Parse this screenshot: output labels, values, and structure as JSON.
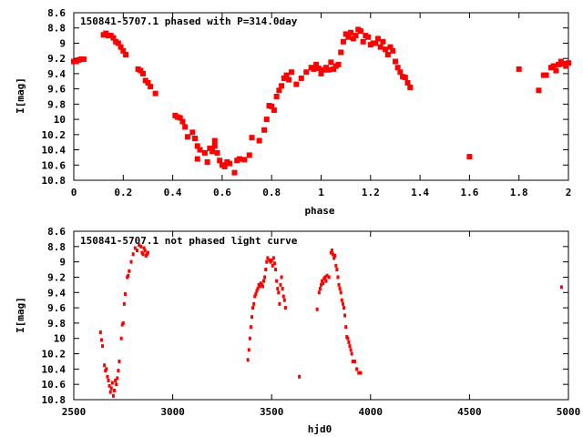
{
  "chart_data": [
    {
      "type": "scatter",
      "title": "150841-5707.1 phased with P=314.0day",
      "xlabel": "phase",
      "ylabel": "I[mag]",
      "xlim": [
        0,
        2
      ],
      "ylim": [
        10.8,
        8.6
      ],
      "y_inverted": true,
      "grid": false,
      "marker_color": "#ff0000",
      "marker": "filled-square",
      "x_ticks": [
        0,
        0.2,
        0.4,
        0.6,
        0.8,
        1,
        1.2,
        1.4,
        1.6,
        1.8,
        2
      ],
      "x_tick_labels": [
        "0",
        "0.2",
        "0.4",
        "0.6",
        "0.8",
        "1",
        "1.2",
        "1.4",
        "1.6",
        "1.8",
        "2"
      ],
      "y_ticks": [
        8.6,
        8.8,
        9,
        9.2,
        9.4,
        9.6,
        9.8,
        10,
        10.2,
        10.4,
        10.6,
        10.8
      ],
      "y_tick_labels": [
        "8.6",
        "8.8",
        "9",
        "9.2",
        "9.4",
        "9.6",
        "9.8",
        "10",
        "10.2",
        "10.4",
        "10.6",
        "10.8"
      ],
      "series": [
        {
          "x": [
            0.0,
            0.01,
            0.02,
            0.03,
            0.04,
            0.12,
            0.13,
            0.14,
            0.15,
            0.16,
            0.17,
            0.18,
            0.19,
            0.2,
            0.21,
            0.26,
            0.27,
            0.28,
            0.29,
            0.3,
            0.31,
            0.33,
            0.41,
            0.42,
            0.43,
            0.44,
            0.45,
            0.46,
            0.48,
            0.49,
            0.5,
            0.5,
            0.51,
            0.53,
            0.54,
            0.55,
            0.56,
            0.57,
            0.57,
            0.58,
            0.59,
            0.6,
            0.61,
            0.62,
            0.63,
            0.65,
            0.66,
            0.67,
            0.69,
            0.71,
            0.72,
            0.75,
            0.77,
            0.78,
            0.79,
            0.8,
            0.81,
            0.82,
            0.83,
            0.84,
            0.85,
            0.86,
            0.87,
            0.88,
            0.9,
            0.92,
            0.94,
            0.96,
            0.97,
            0.98,
            0.99,
            1.0,
            1.01,
            1.02,
            1.03,
            1.04,
            1.05,
            1.06,
            1.07,
            1.08,
            1.09,
            1.1,
            1.11,
            1.12,
            1.13,
            1.14,
            1.15,
            1.16,
            1.17,
            1.18,
            1.19,
            1.2,
            1.21,
            1.22,
            1.23,
            1.24,
            1.25,
            1.26,
            1.27,
            1.28,
            1.29,
            1.3,
            1.31,
            1.32,
            1.33,
            1.34,
            1.35,
            1.36,
            1.6,
            1.8,
            1.88,
            1.9,
            1.91,
            1.93,
            1.94,
            1.95,
            1.96,
            1.97,
            1.98,
            1.99,
            2.0
          ],
          "y": [
            9.24,
            9.24,
            9.22,
            9.21,
            9.21,
            8.89,
            8.87,
            8.9,
            8.9,
            8.93,
            8.98,
            9.0,
            9.05,
            9.1,
            9.15,
            9.34,
            9.36,
            9.4,
            9.49,
            9.52,
            9.57,
            9.66,
            9.95,
            9.97,
            9.98,
            10.03,
            10.1,
            10.23,
            10.17,
            10.25,
            10.35,
            10.52,
            10.4,
            10.44,
            10.56,
            10.38,
            10.42,
            10.35,
            10.28,
            10.44,
            10.54,
            10.6,
            10.62,
            10.56,
            10.58,
            10.7,
            10.54,
            10.52,
            10.53,
            10.47,
            10.24,
            10.28,
            10.14,
            10.0,
            9.82,
            9.83,
            9.88,
            9.7,
            9.62,
            9.56,
            9.46,
            9.42,
            9.48,
            9.38,
            9.54,
            9.46,
            9.38,
            9.32,
            9.34,
            9.28,
            9.33,
            9.4,
            9.35,
            9.32,
            9.35,
            9.25,
            9.34,
            9.3,
            9.28,
            9.12,
            8.98,
            8.88,
            8.92,
            8.86,
            8.94,
            8.9,
            8.82,
            8.84,
            8.98,
            8.9,
            8.92,
            9.02,
            9.0,
            9.0,
            8.94,
            9.05,
            8.98,
            9.08,
            9.15,
            9.05,
            9.1,
            9.24,
            9.32,
            9.38,
            9.44,
            9.45,
            9.52,
            9.58,
            10.49,
            9.34,
            9.62,
            9.42,
            9.42,
            9.32,
            9.3,
            9.36,
            9.28,
            9.24,
            9.27,
            9.3,
            9.26
          ]
        }
      ]
    },
    {
      "type": "scatter",
      "title": "150841-5707.1 not phased light curve",
      "xlabel": "hjd0",
      "ylabel": "I[mag]",
      "xlim": [
        2500,
        5000
      ],
      "ylim": [
        10.8,
        8.6
      ],
      "y_inverted": true,
      "grid": false,
      "marker_color": "#ff0000",
      "marker": "small-dot",
      "x_ticks": [
        2500,
        3000,
        3500,
        4000,
        4500,
        5000
      ],
      "x_tick_labels": [
        "2500",
        "3000",
        "3500",
        "4000",
        "4500",
        "5000"
      ],
      "y_ticks": [
        8.6,
        8.8,
        9,
        9.2,
        9.4,
        9.6,
        9.8,
        10,
        10.2,
        10.4,
        10.6,
        10.8
      ],
      "y_tick_labels": [
        "8.6",
        "8.8",
        "9",
        "9.2",
        "9.4",
        "9.6",
        "9.8",
        "10",
        "10.2",
        "10.4",
        "10.6",
        "10.8"
      ],
      "series": [
        {
          "x": [
            2635,
            2640,
            2645,
            2655,
            2660,
            2665,
            2670,
            2675,
            2680,
            2685,
            2690,
            2695,
            2700,
            2705,
            2710,
            2715,
            2720,
            2725,
            2730,
            2740,
            2745,
            2750,
            2755,
            2760,
            2770,
            2775,
            2780,
            2790,
            2800,
            2810,
            2820,
            2830,
            2840,
            2845,
            2850,
            2855,
            2860,
            2865,
            2870,
            2875,
            3380,
            3385,
            3390,
            3395,
            3400,
            3405,
            3410,
            3415,
            3420,
            3425,
            3430,
            3435,
            3440,
            3445,
            3450,
            3455,
            3460,
            3465,
            3470,
            3475,
            3480,
            3490,
            3495,
            3500,
            3505,
            3510,
            3515,
            3520,
            3525,
            3530,
            3535,
            3540,
            3545,
            3550,
            3555,
            3560,
            3565,
            3570,
            3640,
            3730,
            3740,
            3745,
            3750,
            3755,
            3760,
            3765,
            3770,
            3775,
            3780,
            3790,
            3800,
            3805,
            3810,
            3815,
            3820,
            3825,
            3830,
            3835,
            3840,
            3845,
            3850,
            3855,
            3860,
            3865,
            3870,
            3875,
            3880,
            3885,
            3890,
            3895,
            3900,
            3905,
            3910,
            3920,
            3930,
            3940,
            3950,
            4965
          ],
          "y": [
            9.92,
            10.02,
            10.1,
            10.35,
            10.42,
            10.4,
            10.5,
            10.55,
            10.62,
            10.7,
            10.65,
            10.58,
            10.75,
            10.68,
            10.55,
            10.6,
            10.52,
            10.42,
            10.3,
            10.0,
            9.82,
            9.8,
            9.55,
            9.42,
            9.2,
            9.18,
            9.12,
            9.0,
            8.9,
            8.82,
            8.85,
            8.78,
            8.8,
            8.88,
            8.9,
            8.82,
            8.85,
            8.92,
            8.9,
            8.88,
            10.28,
            10.15,
            10.0,
            9.85,
            9.72,
            9.6,
            9.55,
            9.45,
            9.42,
            9.38,
            9.35,
            9.3,
            9.32,
            9.28,
            9.3,
            9.32,
            9.25,
            9.2,
            9.1,
            9.0,
            8.95,
            8.98,
            9.0,
            8.98,
            9.05,
            8.95,
            9.02,
            9.1,
            9.25,
            9.35,
            9.4,
            9.55,
            9.3,
            9.2,
            9.35,
            9.45,
            9.5,
            9.6,
            10.5,
            9.62,
            9.4,
            9.35,
            9.3,
            9.25,
            9.28,
            9.22,
            9.2,
            9.25,
            9.18,
            9.2,
            8.88,
            8.85,
            8.9,
            8.95,
            8.92,
            9.05,
            9.1,
            9.2,
            9.3,
            9.35,
            9.4,
            9.5,
            9.55,
            9.6,
            9.7,
            9.85,
            9.98,
            10.0,
            10.05,
            10.1,
            10.15,
            10.2,
            10.3,
            10.3,
            10.4,
            10.45,
            10.45,
            9.33
          ]
        }
      ]
    }
  ]
}
